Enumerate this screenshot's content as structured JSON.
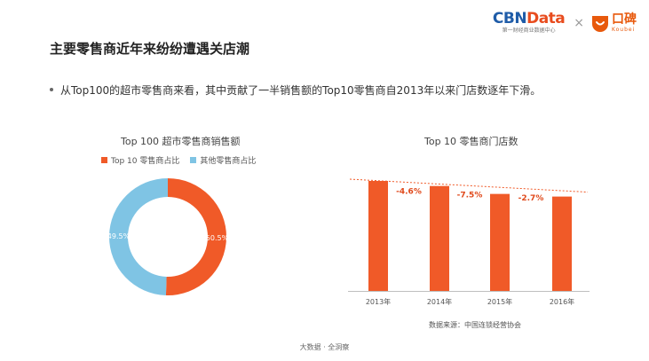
{
  "brand": {
    "cbn_prefix": "CBN",
    "cbn_suffix": "Data",
    "cbn_sub": "第一财经商业数据中心",
    "separator": "×",
    "koubei_cn": "口碑",
    "koubei_en": "Koubei"
  },
  "page": {
    "title": "主要零售商近年来纷纷遭遇关店潮",
    "bullet": "从Top100的超市零售商来看，其中贡献了一半销售额的Top10零售商自2013年以来门店数逐年下滑。"
  },
  "chart_data": [
    {
      "type": "pie",
      "title": "Top 100 超市零售商销售额",
      "donut": true,
      "legend_position": "top",
      "slices": [
        {
          "name": "Top 10 零售商占比",
          "value": 50.5,
          "label": "50.5%",
          "color": "#f05a28"
        },
        {
          "name": "其他零售商占比",
          "value": 49.5,
          "label": "49.5%",
          "color": "#7fc4e4"
        }
      ]
    },
    {
      "type": "bar",
      "title": "Top 10 零售商门店数",
      "categories": [
        "2013年",
        "2014年",
        "2015年",
        "2016年"
      ],
      "values": [
        100,
        95.4,
        88.2,
        85.8
      ],
      "color": "#f05a28",
      "annotations": [
        {
          "between": [
            0,
            1
          ],
          "label": "-4.6%"
        },
        {
          "between": [
            1,
            2
          ],
          "label": "-7.5%"
        },
        {
          "between": [
            2,
            3
          ],
          "label": "-2.7%"
        }
      ],
      "trend_line": "dashed",
      "grid": false
    }
  ],
  "source": "数据来源：中国连锁经营协会",
  "footer": "大数据 · 全洞察"
}
